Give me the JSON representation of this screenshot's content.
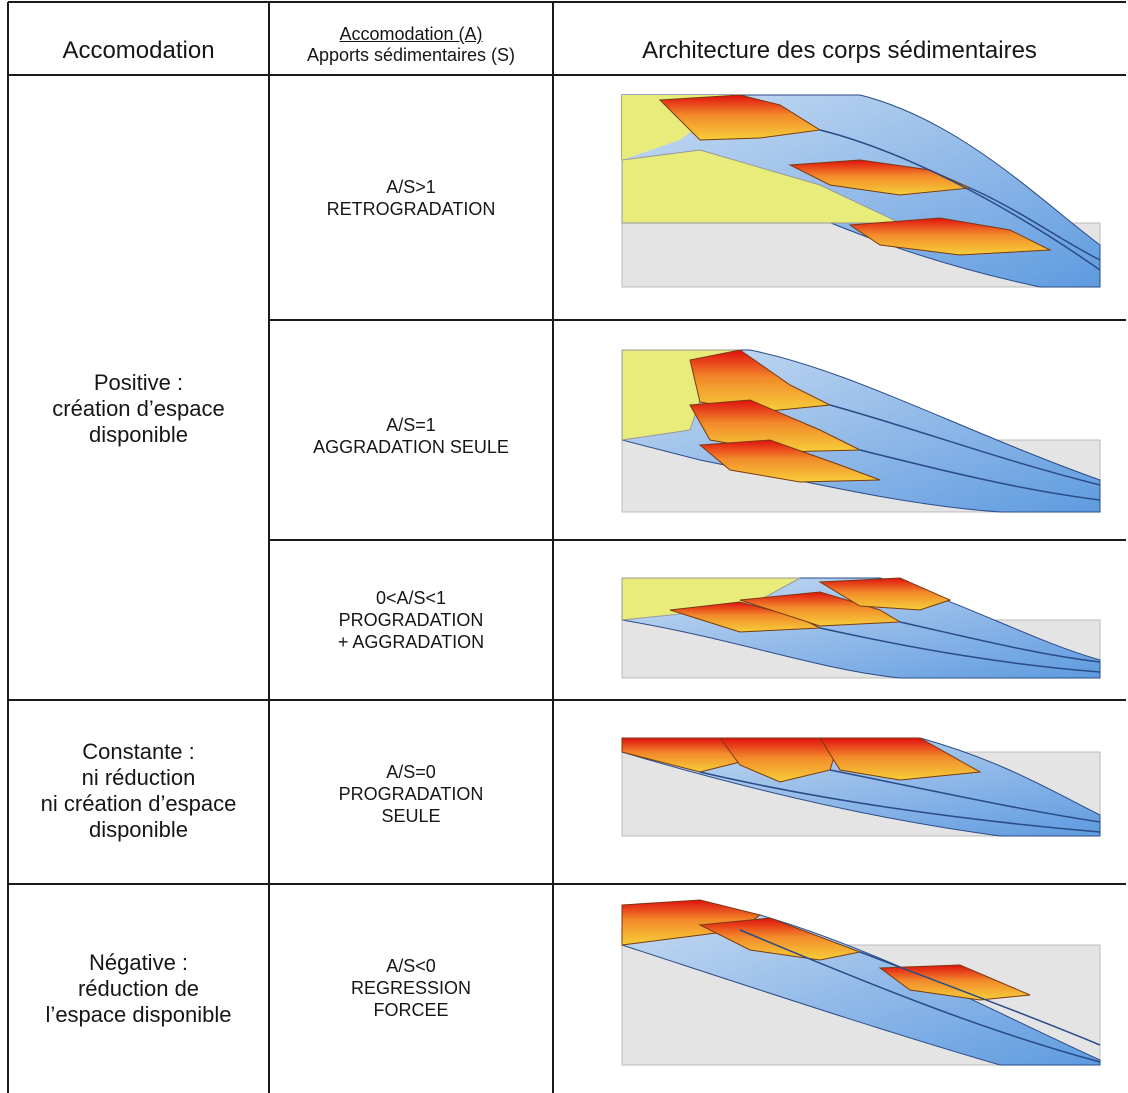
{
  "header": {
    "col1": "Accomodation",
    "col2_line1": "Accomodation (A)",
    "col2_line2": "Apports sédimentaires (S)",
    "col3": "Architecture des corps sédimentaires"
  },
  "accommodation_groups": [
    {
      "lines": [
        "Positive :",
        "création d’espace",
        "disponible"
      ]
    },
    {
      "lines": [
        "Constante :",
        "ni réduction",
        "ni création d’espace",
        "disponible"
      ]
    },
    {
      "lines": [
        "Négative :",
        "réduction de",
        "l’espace disponible"
      ]
    }
  ],
  "ratios": [
    {
      "lines": [
        "A/S>1",
        "RETROGRADATION"
      ]
    },
    {
      "lines": [
        "A/S=1",
        "AGGRADATION SEULE"
      ]
    },
    {
      "lines": [
        "0<A/S<1",
        "PROGRADATION",
        "+ AGGRADATION"
      ]
    },
    {
      "lines": [
        "A/S=0",
        "PROGRADATION",
        "SEULE"
      ]
    },
    {
      "lines": [
        "A/S<0",
        "REGRESSION",
        "FORCEE"
      ]
    }
  ],
  "colors": {
    "continental": "#e8ec7a",
    "substratum": "#e4e4e4",
    "marine_light": "#c9dcf2",
    "marine_dark": "#5f9be0",
    "delta_top": "#e01010",
    "delta_bottom": "#f6cf3a",
    "grid_line": "#1a1a1a"
  }
}
